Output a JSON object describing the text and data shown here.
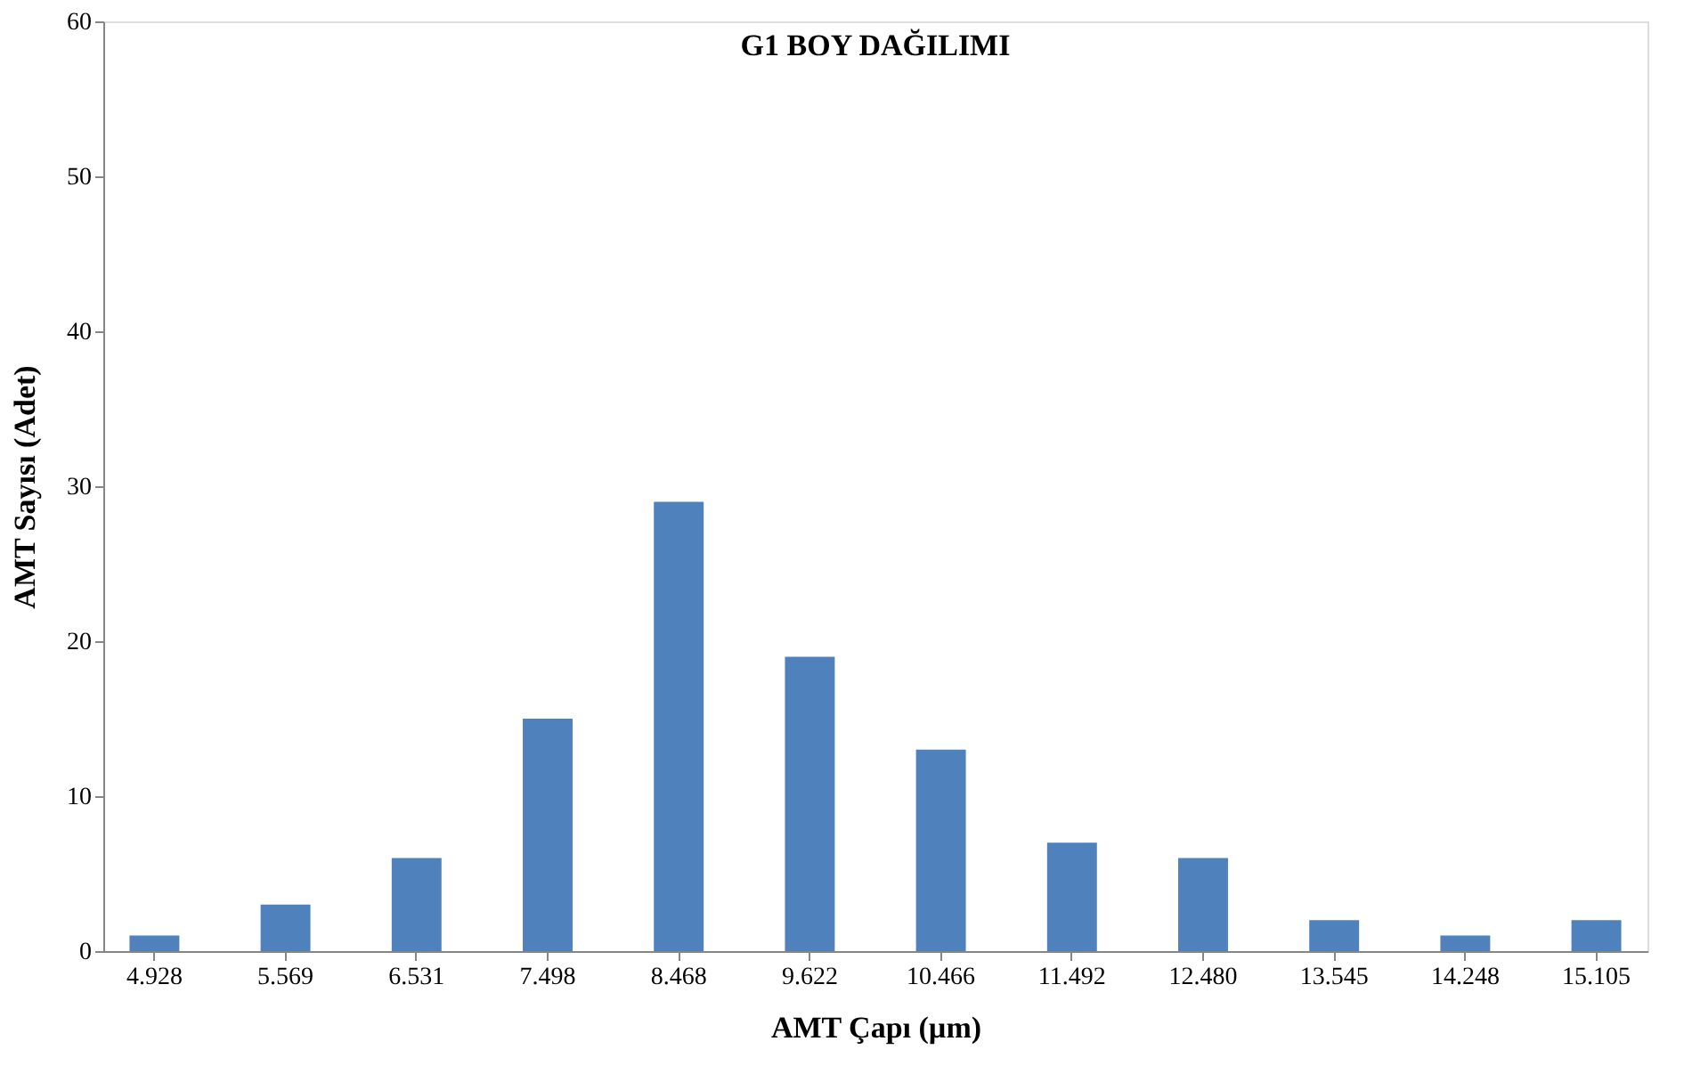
{
  "chart_data": {
    "type": "bar",
    "title": "G1 BOY DAĞILIMI",
    "xlabel": "AMT Çapı (µm)",
    "ylabel": "AMT Sayısı (Adet)",
    "categories": [
      "4.928",
      "5.569",
      "6.531",
      "7.498",
      "8.468",
      "9.622",
      "10.466",
      "11.492",
      "12.480",
      "13.545",
      "14.248",
      "15.105"
    ],
    "values": [
      1,
      3,
      6,
      15,
      29,
      19,
      13,
      7,
      6,
      2,
      1,
      2
    ],
    "color": "#4f81bd",
    "ylim": [
      0,
      60
    ],
    "yticks": [
      0,
      10,
      20,
      30,
      40,
      50,
      60
    ],
    "grid": false
  }
}
